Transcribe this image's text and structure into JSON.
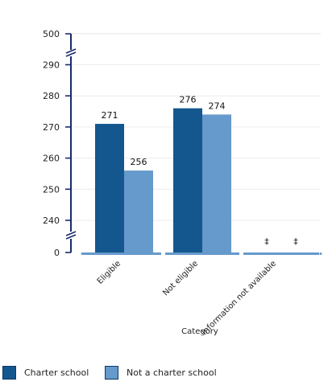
{
  "chart_data": {
    "type": "bar",
    "xlabel": "Category",
    "ylabel": "",
    "y_ticks_top": [
      "500"
    ],
    "y_ticks_main": [
      240,
      250,
      260,
      270,
      280,
      290
    ],
    "y_ticks_bottom": [
      "0"
    ],
    "ylim_main": [
      235,
      295
    ],
    "categories": [
      "Eligible",
      "Not eligible",
      "Information not available"
    ],
    "series": [
      {
        "name": "Charter school",
        "color": "#14578f",
        "values": [
          271,
          276,
          null
        ],
        "labels": [
          "271",
          "276",
          "‡"
        ]
      },
      {
        "name": "Not a charter school",
        "color": "#6699cc",
        "values": [
          256,
          274,
          null
        ],
        "labels": [
          "256",
          "274",
          "‡"
        ]
      }
    ],
    "axis_break": true,
    "grid": true,
    "legend_position": "bottom-left"
  }
}
